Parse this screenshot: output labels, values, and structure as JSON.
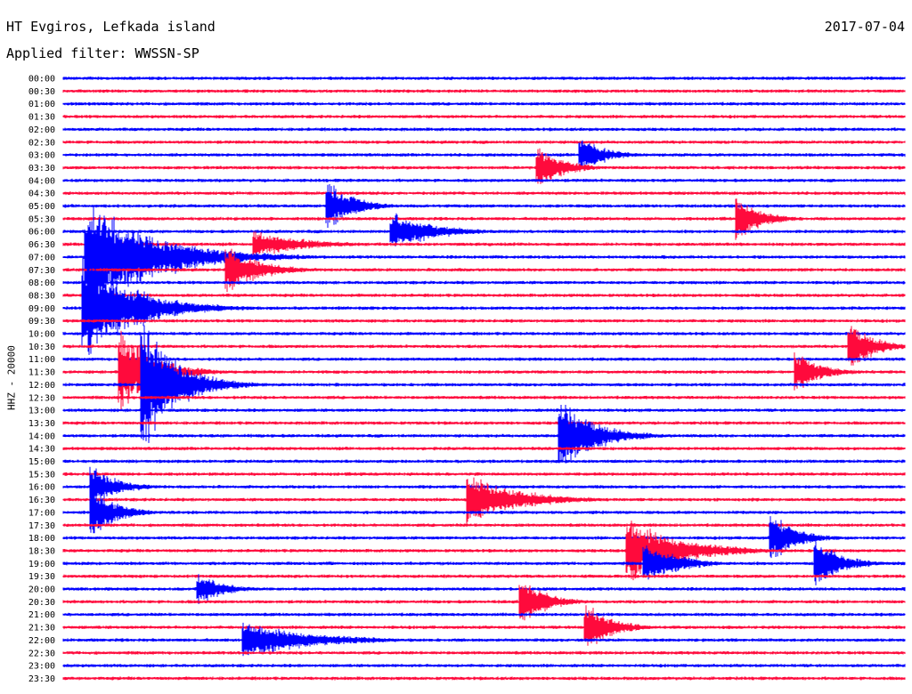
{
  "header": {
    "station": "HT Evgiros, Lefkada island",
    "filter": "Applied filter: WWSSN-SP",
    "date": "2017-07-04"
  },
  "chart_data": {
    "type": "line",
    "subtype": "helicorder",
    "ylabel": "HHZ - 20000",
    "tick_labels": [
      "00:00",
      "00:30",
      "01:00",
      "01:30",
      "02:00",
      "02:30",
      "03:00",
      "03:30",
      "04:00",
      "04:30",
      "05:00",
      "05:30",
      "06:00",
      "06:30",
      "07:00",
      "07:30",
      "08:00",
      "08:30",
      "09:00",
      "09:30",
      "10:00",
      "10:30",
      "11:00",
      "11:30",
      "12:00",
      "12:30",
      "13:00",
      "13:30",
      "14:00",
      "14:30",
      "15:00",
      "15:30",
      "16:00",
      "16:30",
      "17:00",
      "17:30",
      "18:00",
      "18:30",
      "19:00",
      "19:30",
      "20:00",
      "20:30",
      "21:00",
      "21:30",
      "22:00",
      "22:30",
      "23:00",
      "23:30"
    ],
    "colors": {
      "even": "#0000ff",
      "odd": "#ff0a3c"
    },
    "x_range_minutes": [
      0,
      30
    ],
    "events": [
      {
        "row": 10,
        "minute": 9.5,
        "amp": 30,
        "dur": 1.5
      },
      {
        "row": 14,
        "minute": 0.9,
        "amp": 70,
        "dur": 4.0
      },
      {
        "row": 15,
        "minute": 5.9,
        "amp": 28,
        "dur": 2.0
      },
      {
        "row": 18,
        "minute": 0.8,
        "amp": 60,
        "dur": 3.0
      },
      {
        "row": 18,
        "minute": 2.8,
        "amp": 25,
        "dur": 1.5
      },
      {
        "row": 23,
        "minute": 2.1,
        "amp": 50,
        "dur": 2.0
      },
      {
        "row": 24,
        "minute": 2.9,
        "amp": 75,
        "dur": 2.0
      },
      {
        "row": 32,
        "minute": 1.1,
        "amp": 25,
        "dur": 1.5
      },
      {
        "row": 34,
        "minute": 1.1,
        "amp": 28,
        "dur": 1.5
      },
      {
        "row": 33,
        "minute": 14.5,
        "amp": 30,
        "dur": 3.0
      },
      {
        "row": 28,
        "minute": 17.8,
        "amp": 45,
        "dur": 2.0
      },
      {
        "row": 44,
        "minute": 6.5,
        "amp": 22,
        "dur": 4.0
      },
      {
        "row": 40,
        "minute": 4.9,
        "amp": 18,
        "dur": 1.5
      },
      {
        "row": 41,
        "minute": 16.4,
        "amp": 28,
        "dur": 1.5
      },
      {
        "row": 43,
        "minute": 18.7,
        "amp": 30,
        "dur": 1.5
      },
      {
        "row": 37,
        "minute": 20.2,
        "amp": 40,
        "dur": 3.0
      },
      {
        "row": 38,
        "minute": 20.8,
        "amp": 25,
        "dur": 2.0
      },
      {
        "row": 36,
        "minute": 25.3,
        "amp": 30,
        "dur": 1.5
      },
      {
        "row": 38,
        "minute": 26.9,
        "amp": 30,
        "dur": 1.5
      },
      {
        "row": 7,
        "minute": 17.0,
        "amp": 25,
        "dur": 1.5
      },
      {
        "row": 6,
        "minute": 18.5,
        "amp": 22,
        "dur": 1.5
      },
      {
        "row": 11,
        "minute": 24.1,
        "amp": 25,
        "dur": 1.5
      },
      {
        "row": 21,
        "minute": 28.1,
        "amp": 28,
        "dur": 1.5
      },
      {
        "row": 23,
        "minute": 26.2,
        "amp": 24,
        "dur": 1.5
      },
      {
        "row": 12,
        "minute": 11.8,
        "amp": 22,
        "dur": 2.5
      },
      {
        "row": 13,
        "minute": 6.9,
        "amp": 16,
        "dur": 3.0
      }
    ]
  }
}
